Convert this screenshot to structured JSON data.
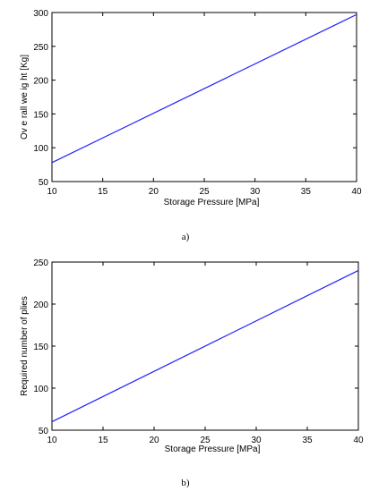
{
  "chart_data": [
    {
      "type": "line",
      "xlabel": "Storage Pressure [MPa]",
      "ylabel": "Ov e rall we ig ht [Kg]",
      "xlim": [
        10,
        40
      ],
      "ylim": [
        50,
        300
      ],
      "x_ticks": [
        "10",
        "15",
        "20",
        "25",
        "30",
        "35",
        "40"
      ],
      "y_ticks": [
        "50",
        "100",
        "150",
        "200",
        "250",
        "300"
      ],
      "series": [
        {
          "x": [
            10,
            40
          ],
          "y": [
            78,
            297
          ],
          "color": "#1f1fff"
        }
      ],
      "caption": "a)",
      "grid": false
    },
    {
      "type": "line",
      "xlabel": "Storage Pressure [MPa]",
      "ylabel": "Required number of plies",
      "xlim": [
        10,
        40
      ],
      "ylim": [
        50,
        250
      ],
      "x_ticks": [
        "10",
        "15",
        "20",
        "25",
        "30",
        "35",
        "40"
      ],
      "y_ticks": [
        "50",
        "100",
        "150",
        "200",
        "250"
      ],
      "series": [
        {
          "x": [
            10,
            40
          ],
          "y": [
            60,
            240
          ],
          "color": "#1f1fff"
        }
      ],
      "caption": "b)",
      "grid": false
    }
  ]
}
